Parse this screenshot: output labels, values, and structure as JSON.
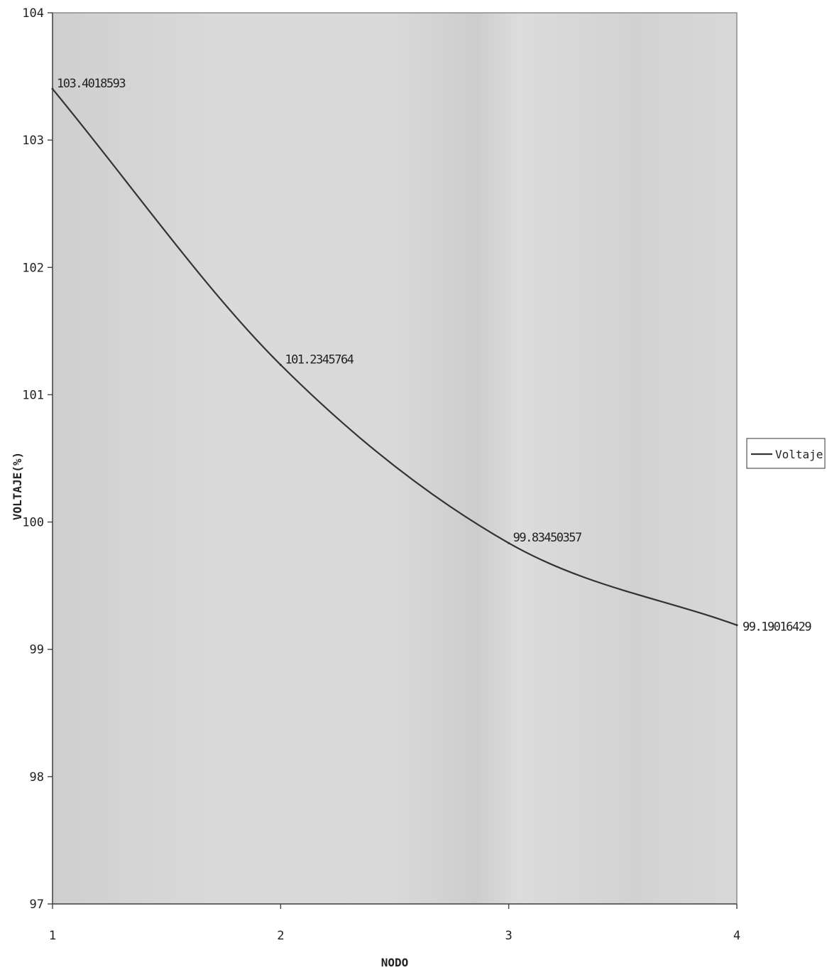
{
  "chart_data": {
    "type": "line",
    "title": "",
    "xlabel": "NODO",
    "ylabel": "VOLTAJE(%)",
    "categories": [
      "1",
      "2",
      "3",
      "4"
    ],
    "x": [
      1,
      2,
      3,
      4
    ],
    "ylim": [
      97,
      104
    ],
    "yticks": [
      "97",
      "98",
      "99",
      "100",
      "101",
      "102",
      "103",
      "104"
    ],
    "series": [
      {
        "name": "Voltaje %",
        "values": [
          103.4018593,
          101.2345764,
          99.83450357,
          99.19016429
        ],
        "labels": [
          "103.4018593",
          "101.2345764",
          "99.83450357",
          "99.19016429"
        ],
        "color": "#333333"
      }
    ],
    "grid": false,
    "legend": "right",
    "plot_background": "#d6d6d6"
  }
}
